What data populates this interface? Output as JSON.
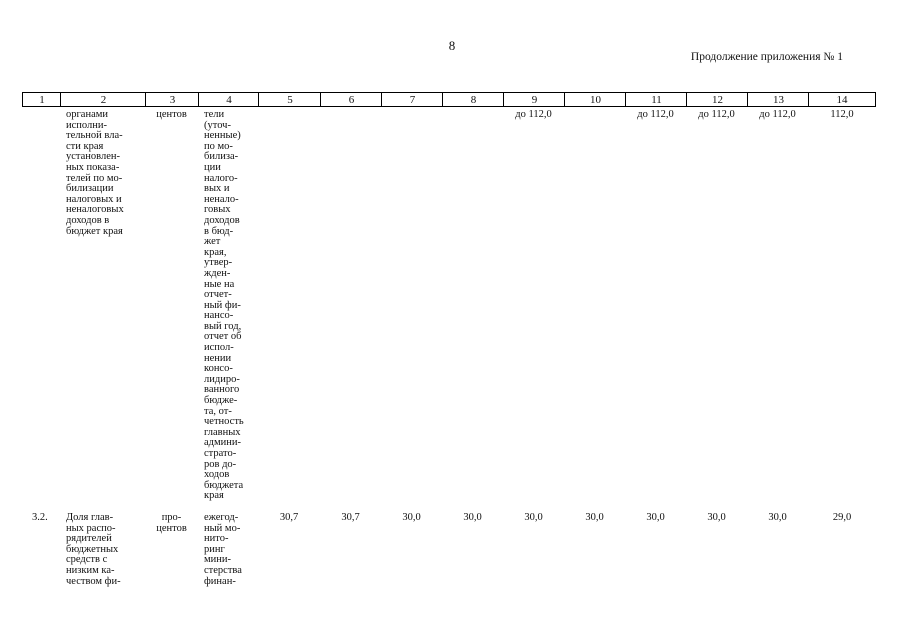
{
  "header": {
    "page_number": "8",
    "caption": "Продолжение приложения № 1"
  },
  "table": {
    "head": [
      "1",
      "2",
      "3",
      "4",
      "5",
      "6",
      "7",
      "8",
      "9",
      "10",
      "11",
      "12",
      "13",
      "14"
    ],
    "rows": [
      [
        null,
        "органами\nисполни-\nтельной вла-\nсти края\nустановлен-\nных показа-\nтелей по мо-\nбилизации\nналоговых и\nненалоговых\nдоходов в\nбюджет края",
        "центов",
        "тели\n(уточ-\nненные)\nпо мо-\nбилиза-\nции\nналого-\nвых и\nненало-\nговых\nдоходов\nв бюд-\nжет\nкрая,\nутвер-\nжден-\nные на\nотчет-\nный фи-\nнансо-\nвый год,\nотчет об\nиспол-\nнении\nконсо-\nлидиро-\nванного\nбюдже-\nта, от-\nчетность\nглавных\nадмини-\nстрато-\nров до-\nходов\nбюджета\nкрая",
        null,
        null,
        null,
        null,
        "до 112,0",
        null,
        "до 112,0",
        "до 112,0",
        "до 112,0",
        "112,0"
      ],
      [
        "3.2.",
        "Доля глав-\nных распо-\nрядителей\nбюджетных\nсредств с\nнизким ка-\nчеством фи-",
        "про-\nцентов",
        "ежегод-\nный мо-\nнито-\nринг\nмини-\nстерства\nфинан-",
        "30,7",
        "30,7",
        "30,0",
        "30,0",
        "30,0",
        "30,0",
        "30,0",
        "30,0",
        "30,0",
        "29,0"
      ]
    ]
  }
}
